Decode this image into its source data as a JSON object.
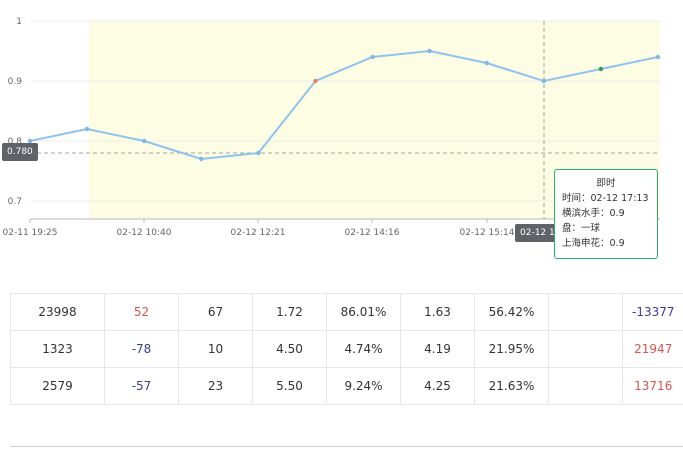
{
  "chart_data": {
    "type": "line",
    "title": "",
    "xlabel": "",
    "ylabel": "",
    "ylim": [
      0.67,
      1.0
    ],
    "y_ticks": [
      0.7,
      0.8,
      0.9,
      1.0
    ],
    "y_tick_labels": [
      "0.7",
      "0.8",
      "0.9",
      "1"
    ],
    "x_tick_labels": [
      "02-11 19:25",
      "02-12 10:40",
      "02-12 12:21",
      "02-12 14:16",
      "02-12 15:14"
    ],
    "series": [
      {
        "values": [
          0.8,
          0.82,
          0.8,
          0.77,
          0.78,
          0.9,
          0.94,
          0.95,
          0.93,
          0.9,
          0.92,
          0.94
        ],
        "point_colors": [
          "#7eb6e8",
          "#7eb6e8",
          "#7eb6e8",
          "#7eb6e8",
          "#7eb6e8",
          "#e8845a",
          "#7eb6e8",
          "#7eb6e8",
          "#7eb6e8",
          "#7eb6e8",
          "#2e9e50",
          "#7eb6e8"
        ]
      }
    ],
    "highlight_band": true,
    "grid": true,
    "line_color": "#8fc3ee",
    "band_color": "#fdfde4"
  },
  "crosshair": {
    "y_value_label": "0.780",
    "x_value_label": "02-12 17:13"
  },
  "tooltip": {
    "title": "即时",
    "rows": [
      "时间：02-12 17:13",
      "横滨水手：0.9",
      "盘：一球",
      "上海申花：0.9"
    ]
  },
  "table": {
    "rows": [
      {
        "cells": [
          "23998",
          "52",
          "67",
          "1.72",
          "86.01%",
          "1.63",
          "56.42%",
          "",
          "-13377"
        ],
        "colors": [
          "",
          "red",
          "",
          "",
          "",
          "",
          "",
          "",
          "blue"
        ]
      },
      {
        "cells": [
          "1323",
          "-78",
          "10",
          "4.50",
          "4.74%",
          "4.19",
          "21.95%",
          "",
          "21947"
        ],
        "colors": [
          "",
          "blue",
          "",
          "",
          "",
          "",
          "",
          "",
          "red"
        ]
      },
      {
        "cells": [
          "2579",
          "-57",
          "23",
          "5.50",
          "9.24%",
          "4.25",
          "21.63%",
          "",
          "13716"
        ],
        "colors": [
          "",
          "blue",
          "",
          "",
          "",
          "",
          "",
          "",
          "red"
        ]
      }
    ]
  }
}
